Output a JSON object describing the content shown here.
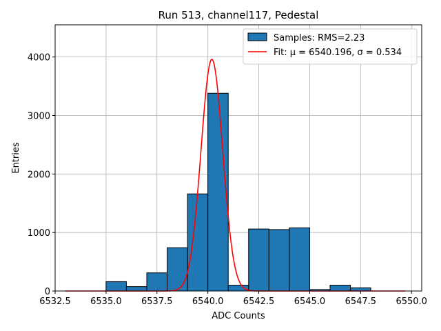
{
  "chart_data": {
    "type": "bar",
    "title": "Run 513, channel117, Pedestal",
    "xlabel": "ADC Counts",
    "ylabel": "Entries",
    "xlim": [
      6532.5,
      6550.5
    ],
    "ylim": [
      0,
      4550
    ],
    "xticks": [
      6532.5,
      6535.0,
      6537.5,
      6540.0,
      6542.5,
      6545.0,
      6547.5,
      6550.0
    ],
    "xtick_labels": [
      "6532.5",
      "6535.0",
      "6537.5",
      "6540.0",
      "6542.5",
      "6545.0",
      "6547.5",
      "6550.0"
    ],
    "yticks": [
      0,
      1000,
      2000,
      3000,
      4000
    ],
    "ytick_labels": [
      "0",
      "1000",
      "2000",
      "3000",
      "4000"
    ],
    "grid": true,
    "legend_position": "top-right",
    "histogram": {
      "name": "Samples: RMS=2.23",
      "color": "#1f77b4",
      "edge_color": "#000000",
      "bins": [
        {
          "x0": 6535.0,
          "x1": 6536.0,
          "count": 160
        },
        {
          "x0": 6536.0,
          "x1": 6537.0,
          "count": 75
        },
        {
          "x0": 6537.0,
          "x1": 6538.0,
          "count": 310
        },
        {
          "x0": 6538.0,
          "x1": 6539.0,
          "count": 740
        },
        {
          "x0": 6539.0,
          "x1": 6540.0,
          "count": 1660
        },
        {
          "x0": 6540.0,
          "x1": 6541.0,
          "count": 3380
        },
        {
          "x0": 6541.0,
          "x1": 6542.0,
          "count": 100
        },
        {
          "x0": 6542.0,
          "x1": 6543.0,
          "count": 1060
        },
        {
          "x0": 6543.0,
          "x1": 6544.0,
          "count": 1050
        },
        {
          "x0": 6544.0,
          "x1": 6545.0,
          "count": 1080
        },
        {
          "x0": 6545.0,
          "x1": 6546.0,
          "count": 25
        },
        {
          "x0": 6546.0,
          "x1": 6547.0,
          "count": 100
        },
        {
          "x0": 6547.0,
          "x1": 6548.0,
          "count": 55
        }
      ]
    },
    "fit": {
      "name": "Fit: μ = 6540.196, σ = 0.534",
      "color": "#ff0000",
      "mu": 6540.196,
      "sigma": 0.534,
      "amplitude": 3960,
      "x_range": [
        6533.0,
        6549.7
      ]
    }
  }
}
